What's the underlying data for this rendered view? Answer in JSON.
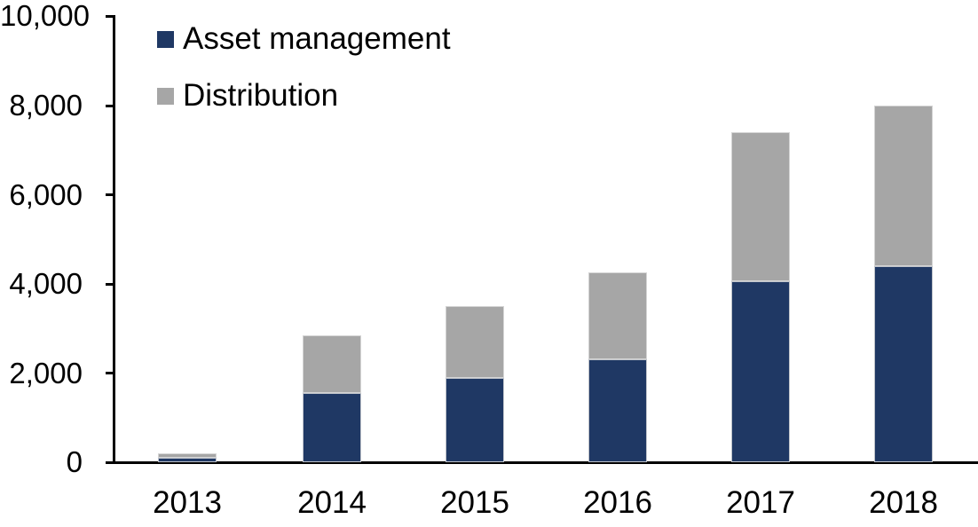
{
  "chart_data": {
    "type": "bar",
    "stacked": true,
    "title": "",
    "categories": [
      "2013",
      "2014",
      "2015",
      "2016",
      "2017",
      "2018"
    ],
    "series": [
      {
        "name": "Asset management",
        "color": "#1F3864",
        "values": [
          100,
          1550,
          1900,
          2300,
          4050,
          4400
        ]
      },
      {
        "name": "Distribution",
        "color": "#A6A6A6",
        "values": [
          100,
          1300,
          1600,
          1950,
          3350,
          3600
        ]
      }
    ],
    "stack_totals": [
      200,
      2850,
      3500,
      4250,
      7400,
      8000
    ],
    "xlabel": "",
    "ylabel": "",
    "ylim": [
      0,
      10000
    ],
    "yticks": [
      0,
      2000,
      4000,
      6000,
      8000,
      10000
    ],
    "ytick_labels": [
      "0",
      "2,000",
      "4,000",
      "6,000",
      "8,000",
      "10,000"
    ],
    "legend_position": "top-left",
    "grid": false,
    "axis_color": "#000000",
    "background_color": "#FFFFFF"
  }
}
